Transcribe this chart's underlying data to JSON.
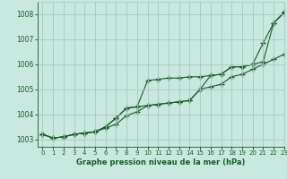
{
  "title": "Graphe pression niveau de la mer (hPa)",
  "bg_color": "#c8e8e0",
  "grid_color": "#a8c8c0",
  "line_color": "#1a5c2a",
  "xlim": [
    -0.5,
    23
  ],
  "ylim": [
    1002.7,
    1008.5
  ],
  "yticks": [
    1003,
    1004,
    1005,
    1006,
    1007,
    1008
  ],
  "xticks": [
    0,
    1,
    2,
    3,
    4,
    5,
    6,
    7,
    8,
    9,
    10,
    11,
    12,
    13,
    14,
    15,
    16,
    17,
    18,
    19,
    20,
    21,
    22,
    23
  ],
  "line1_x": [
    0,
    1,
    2,
    3,
    4,
    5,
    6,
    7,
    8,
    9,
    10,
    11,
    12,
    13,
    14,
    15,
    16,
    17,
    18,
    19,
    20,
    21,
    22,
    23
  ],
  "line1_y": [
    1003.2,
    1003.05,
    1003.1,
    1003.2,
    1003.25,
    1003.3,
    1003.45,
    1003.6,
    1003.95,
    1004.1,
    1004.35,
    1004.4,
    1004.45,
    1004.5,
    1004.55,
    1005.0,
    1005.1,
    1005.2,
    1005.5,
    1005.6,
    1005.8,
    1006.0,
    1006.2,
    1006.4
  ],
  "line2_x": [
    0,
    1,
    2,
    3,
    4,
    5,
    6,
    7,
    8,
    9,
    10,
    11,
    12,
    13,
    14,
    15,
    16,
    17,
    18,
    19,
    20,
    21,
    22,
    23
  ],
  "line2_y": [
    1003.2,
    1003.05,
    1003.1,
    1003.2,
    1003.25,
    1003.3,
    1003.5,
    1003.85,
    1004.25,
    1004.3,
    1005.35,
    1005.4,
    1005.45,
    1005.45,
    1005.5,
    1005.5,
    1005.55,
    1005.6,
    1005.9,
    1005.9,
    1006.0,
    1006.85,
    1007.65,
    1008.05
  ],
  "line3_x": [
    0,
    1,
    2,
    3,
    4,
    5,
    6,
    7,
    8,
    9,
    10,
    11,
    12,
    13,
    14,
    15,
    16,
    17,
    18,
    19,
    20,
    21,
    22,
    23
  ],
  "line3_y": [
    1003.2,
    1003.05,
    1003.1,
    1003.2,
    1003.25,
    1003.3,
    1003.5,
    1003.85,
    1004.25,
    1004.3,
    1004.35,
    1004.4,
    1004.45,
    1004.5,
    1004.55,
    1005.0,
    1005.55,
    1005.6,
    1005.9,
    1005.9,
    1006.0,
    1006.1,
    1007.65,
    1008.1
  ]
}
